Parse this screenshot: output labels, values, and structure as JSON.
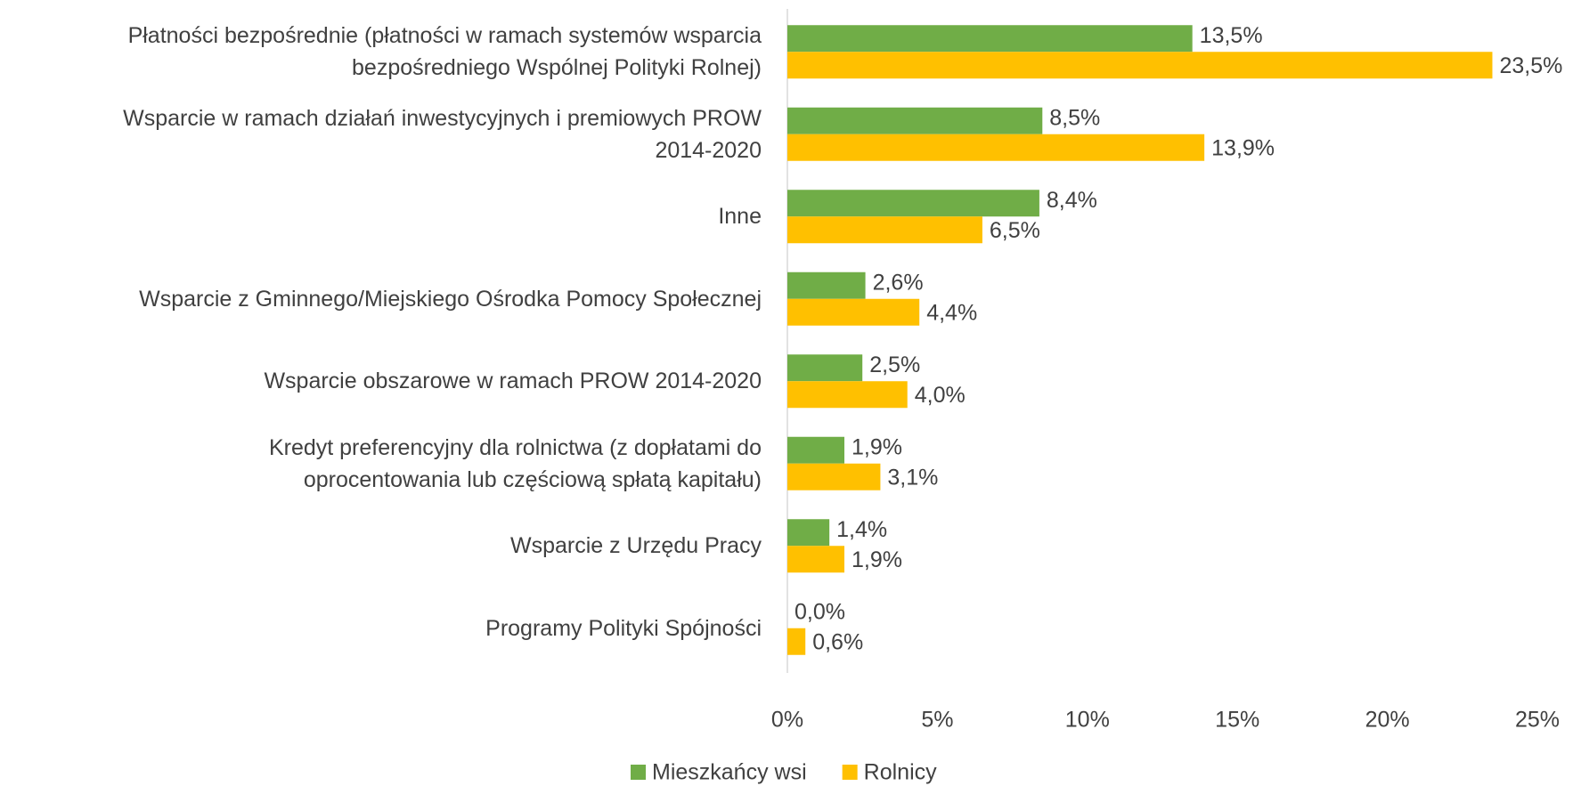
{
  "chart_data": {
    "type": "barh",
    "categories": [
      "Płatności bezpośrednie (płatności w ramach systemów wsparcia\nbezpośredniego Wspólnej Polityki Rolnej)",
      "Wsparcie w ramach działań inwestycyjnych i premiowych PROW\n2014-2020",
      "Inne",
      "Wsparcie z Gminnego/Miejskiego Ośrodka Pomocy Społecznej",
      "Wsparcie obszarowe w ramach PROW 2014-2020",
      "Kredyt preferencyjny dla rolnictwa (z dopłatami do\noprocentowania lub częściową spłatą kapitału)",
      "Wsparcie z Urzędu Pracy",
      "Programy Polityki Spójności"
    ],
    "series": [
      {
        "name": "Mieszkańcy wsi",
        "color": "#70ad47",
        "values": [
          13.5,
          8.5,
          8.4,
          2.6,
          2.5,
          1.9,
          1.4,
          0.0
        ],
        "value_labels": [
          "13,5%",
          "8,5%",
          "8,4%",
          "2,6%",
          "2,5%",
          "1,9%",
          "1,4%",
          "0,0%"
        ]
      },
      {
        "name": "Rolnicy",
        "color": "#ffc000",
        "values": [
          23.5,
          13.9,
          6.5,
          4.4,
          4.0,
          3.1,
          1.9,
          0.6
        ],
        "value_labels": [
          "23,5%",
          "13,9%",
          "6,5%",
          "4,4%",
          "4,0%",
          "3,1%",
          "1,9%",
          "0,6%"
        ]
      }
    ],
    "xlim": [
      0,
      25
    ],
    "xticks": [
      {
        "value": 0,
        "label": "0%"
      },
      {
        "value": 5,
        "label": "5%"
      },
      {
        "value": 10,
        "label": "10%"
      },
      {
        "value": 15,
        "label": "15%"
      },
      {
        "value": 20,
        "label": "20%"
      },
      {
        "value": 25,
        "label": "25%"
      }
    ],
    "legend": "bottom"
  }
}
